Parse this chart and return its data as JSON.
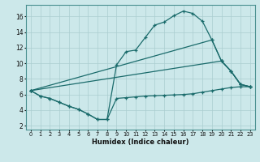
{
  "xlabel": "Humidex (Indice chaleur)",
  "bg_color": "#cce8ea",
  "grid_color": "#aacdd0",
  "line_color": "#1a6b6b",
  "xlim": [
    -0.5,
    23.5
  ],
  "ylim": [
    1.5,
    17.5
  ],
  "xticks": [
    0,
    1,
    2,
    3,
    4,
    5,
    6,
    7,
    8,
    9,
    10,
    11,
    12,
    13,
    14,
    15,
    16,
    17,
    18,
    19,
    20,
    21,
    22,
    23
  ],
  "yticks": [
    2,
    4,
    6,
    8,
    10,
    12,
    14,
    16
  ],
  "curve_main_x": [
    0,
    1,
    2,
    3,
    4,
    5,
    6,
    7,
    8,
    9,
    10,
    11,
    12,
    13,
    14,
    15,
    16,
    17,
    18,
    19,
    20,
    21,
    22,
    23
  ],
  "curve_main_y": [
    6.5,
    5.8,
    5.5,
    5.0,
    4.5,
    4.1,
    3.5,
    2.8,
    2.8,
    9.8,
    11.5,
    11.7,
    13.3,
    14.9,
    15.3,
    16.1,
    16.7,
    16.4,
    15.4,
    13.0,
    10.3,
    9.0,
    7.3,
    7.0
  ],
  "curve_diag1_x": [
    0,
    19,
    20,
    21,
    22,
    23
  ],
  "curve_diag1_y": [
    6.5,
    13.0,
    10.3,
    9.0,
    7.3,
    7.0
  ],
  "curve_diag2_x": [
    0,
    20,
    21,
    22,
    23
  ],
  "curve_diag2_y": [
    6.5,
    10.3,
    9.0,
    7.3,
    7.0
  ],
  "curve_flat_x": [
    0,
    1,
    2,
    3,
    4,
    5,
    6,
    7,
    8,
    9,
    10,
    11,
    12,
    13,
    14,
    15,
    16,
    17,
    18,
    19,
    20,
    21,
    22,
    23
  ],
  "curve_flat_y": [
    6.5,
    5.8,
    5.5,
    5.0,
    4.5,
    4.1,
    3.5,
    2.8,
    2.8,
    5.5,
    5.6,
    5.7,
    5.8,
    5.85,
    5.9,
    5.95,
    6.0,
    6.1,
    6.3,
    6.5,
    6.7,
    6.9,
    7.0,
    7.0
  ]
}
